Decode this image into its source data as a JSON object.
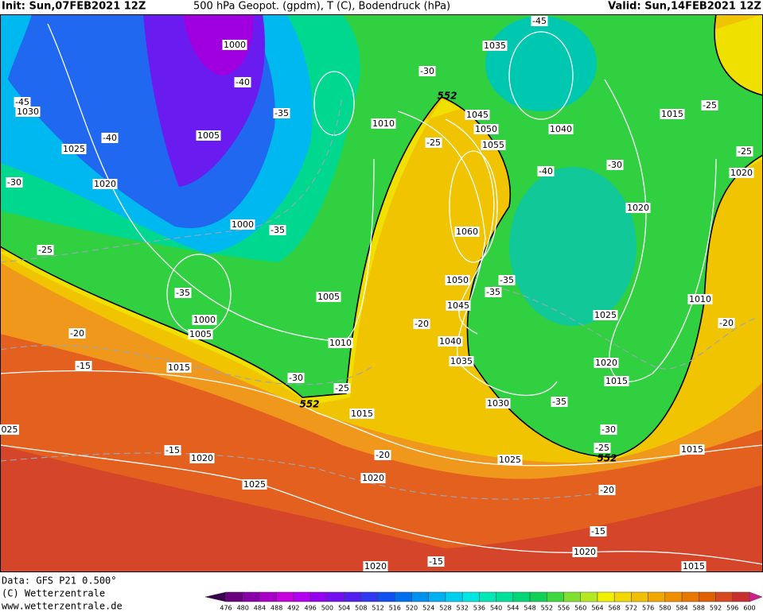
{
  "header": {
    "init": "Init: Sun,07FEB2021 12Z",
    "title": "500 hPa Geopot. (gpdm), T (C), Bodendruck (hPa)",
    "valid": "Valid: Sun,14FEB2021 12Z"
  },
  "map": {
    "isobar_labels": [
      "1000",
      "1035",
      "1030",
      "1045",
      "1010",
      "1050",
      "1040",
      "1005",
      "1055",
      "1015",
      "1025",
      "1020",
      "1020",
      "1020",
      "1000",
      "1060",
      "1050",
      "1005",
      "1045",
      "1010",
      "1025",
      "1000",
      "1005",
      "1040",
      "1010",
      "1035",
      "1020",
      "1015",
      "1015",
      "1030",
      "1015",
      "025",
      "1015",
      "1020",
      "1025",
      "1020",
      "1025",
      "1020",
      "1020",
      "1015"
    ],
    "temperature_labels": [
      "-45",
      "-30",
      "-40",
      "-45",
      "-35",
      "-25",
      "-40",
      "-25",
      "-25",
      "-40",
      "-30",
      "-30",
      "-35",
      "-25",
      "-35",
      "-35",
      "-35",
      "-20",
      "-20",
      "-20",
      "-15",
      "-30",
      "-25",
      "-35",
      "-30",
      "-25",
      "-15",
      "-20",
      "-20",
      "-15",
      "-15"
    ],
    "contour_552_labels": [
      "552",
      "552",
      "552"
    ]
  },
  "footer": {
    "data": "Data: GFS P21 0.500°",
    "copyright": "(C) Wetterzentrale",
    "url": "www.wetterzentrale.de"
  },
  "colorbar": {
    "levels": [
      476,
      480,
      484,
      488,
      492,
      496,
      500,
      504,
      508,
      512,
      516,
      520,
      524,
      528,
      532,
      536,
      540,
      544,
      548,
      552,
      556,
      560,
      564,
      568,
      572,
      576,
      580,
      584,
      588,
      592,
      596,
      600
    ],
    "colors": [
      "#3c0050",
      "#680080",
      "#8800a8",
      "#a800c8",
      "#c800e0",
      "#b400f0",
      "#9400f0",
      "#7410f0",
      "#5420f0",
      "#3038f0",
      "#1050f0",
      "#0070f0",
      "#0090f0",
      "#00b0f0",
      "#00cff0",
      "#00e6e0",
      "#00e8b8",
      "#00e098",
      "#00d878",
      "#10d058",
      "#40d840",
      "#80e030",
      "#b4e820",
      "#f0f000",
      "#f0d800",
      "#f0c000",
      "#f0a800",
      "#f09000",
      "#e87800",
      "#e06000",
      "#d84820",
      "#c83030",
      "#d0208c"
    ]
  }
}
